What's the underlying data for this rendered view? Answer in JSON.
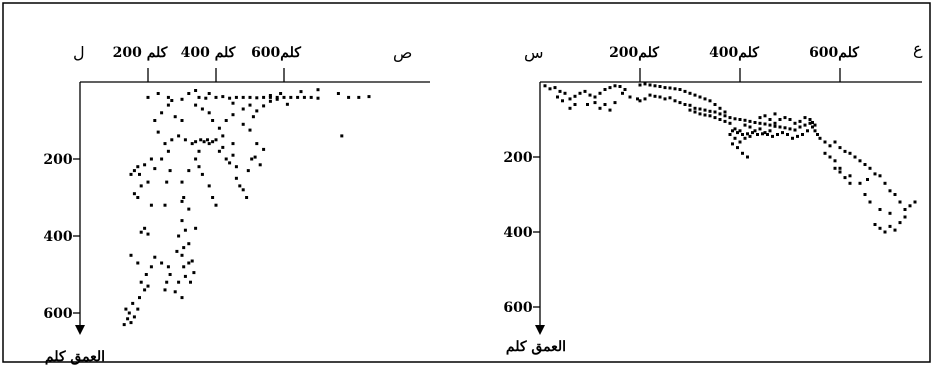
{
  "chart_data": [
    {
      "type": "scatter",
      "panel": "left",
      "corner_label": "ل",
      "x_end_label": "ص",
      "ylabel": "العمق كلم",
      "x_ticks": [
        {
          "value": 200,
          "label": "200 كلم"
        },
        {
          "value": 400,
          "label": "400 كلم"
        },
        {
          "value": 600,
          "label": "600كلم"
        }
      ],
      "y_ticks": [
        {
          "value": 200,
          "label": "200"
        },
        {
          "value": 400,
          "label": "400"
        },
        {
          "value": 600,
          "label": "600"
        }
      ],
      "xlim": [
        0,
        850
      ],
      "ylim": [
        0,
        640
      ],
      "grid": false,
      "points": [
        [
          130,
          630
        ],
        [
          140,
          615
        ],
        [
          150,
          625
        ],
        [
          135,
          590
        ],
        [
          145,
          600
        ],
        [
          160,
          610
        ],
        [
          170,
          590
        ],
        [
          155,
          575
        ],
        [
          175,
          560
        ],
        [
          190,
          540
        ],
        [
          180,
          520
        ],
        [
          200,
          530
        ],
        [
          195,
          500
        ],
        [
          210,
          480
        ],
        [
          170,
          470
        ],
        [
          150,
          450
        ],
        [
          220,
          455
        ],
        [
          240,
          470
        ],
        [
          260,
          480
        ],
        [
          265,
          500
        ],
        [
          255,
          520
        ],
        [
          250,
          540
        ],
        [
          280,
          545
        ],
        [
          300,
          560
        ],
        [
          290,
          520
        ],
        [
          310,
          505
        ],
        [
          305,
          480
        ],
        [
          320,
          470
        ],
        [
          300,
          450
        ],
        [
          285,
          440
        ],
        [
          330,
          465
        ],
        [
          335,
          495
        ],
        [
          325,
          520
        ],
        [
          305,
          430
        ],
        [
          320,
          420
        ],
        [
          290,
          400
        ],
        [
          310,
          385
        ],
        [
          300,
          360
        ],
        [
          340,
          380
        ],
        [
          320,
          330
        ],
        [
          300,
          310
        ],
        [
          180,
          390
        ],
        [
          190,
          380
        ],
        [
          200,
          395
        ],
        [
          210,
          320
        ],
        [
          170,
          300
        ],
        [
          160,
          290
        ],
        [
          180,
          270
        ],
        [
          200,
          260
        ],
        [
          175,
          240
        ],
        [
          150,
          240
        ],
        [
          160,
          230
        ],
        [
          170,
          220
        ],
        [
          190,
          215
        ],
        [
          210,
          200
        ],
        [
          220,
          225
        ],
        [
          240,
          200
        ],
        [
          260,
          180
        ],
        [
          265,
          230
        ],
        [
          255,
          260
        ],
        [
          250,
          320
        ],
        [
          305,
          300
        ],
        [
          300,
          260
        ],
        [
          320,
          230
        ],
        [
          350,
          220
        ],
        [
          360,
          240
        ],
        [
          380,
          270
        ],
        [
          390,
          300
        ],
        [
          400,
          320
        ],
        [
          340,
          200
        ],
        [
          350,
          180
        ],
        [
          380,
          160
        ],
        [
          400,
          150
        ],
        [
          420,
          140
        ],
        [
          410,
          180
        ],
        [
          430,
          200
        ],
        [
          440,
          210
        ],
        [
          460,
          220
        ],
        [
          450,
          190
        ],
        [
          420,
          170
        ],
        [
          410,
          120
        ],
        [
          390,
          100
        ],
        [
          380,
          80
        ],
        [
          360,
          70
        ],
        [
          340,
          60
        ],
        [
          350,
          40
        ],
        [
          370,
          42
        ],
        [
          400,
          40
        ],
        [
          420,
          38
        ],
        [
          440,
          42
        ],
        [
          460,
          40
        ],
        [
          480,
          40
        ],
        [
          500,
          40
        ],
        [
          520,
          41
        ],
        [
          540,
          40
        ],
        [
          560,
          40
        ],
        [
          580,
          40
        ],
        [
          600,
          40
        ],
        [
          620,
          40
        ],
        [
          640,
          40
        ],
        [
          660,
          40
        ],
        [
          680,
          40
        ],
        [
          700,
          42
        ],
        [
          450,
          55
        ],
        [
          480,
          70
        ],
        [
          500,
          60
        ],
        [
          520,
          75
        ],
        [
          540,
          62
        ],
        [
          560,
          50
        ],
        [
          580,
          45
        ],
        [
          610,
          58
        ],
        [
          300,
          100
        ],
        [
          280,
          90
        ],
        [
          260,
          60
        ],
        [
          240,
          80
        ],
        [
          220,
          100
        ],
        [
          230,
          130
        ],
        [
          250,
          160
        ],
        [
          270,
          150
        ],
        [
          290,
          140
        ],
        [
          310,
          150
        ],
        [
          330,
          160
        ],
        [
          340,
          155
        ],
        [
          355,
          150
        ],
        [
          365,
          155
        ],
        [
          375,
          150
        ],
        [
          390,
          155
        ],
        [
          260,
          40
        ],
        [
          270,
          48
        ],
        [
          560,
          35
        ],
        [
          590,
          30
        ],
        [
          650,
          25
        ],
        [
          700,
          20
        ],
        [
          760,
          30
        ],
        [
          790,
          40
        ],
        [
          820,
          40
        ],
        [
          850,
          38
        ],
        [
          770,
          140
        ],
        [
          480,
          110
        ],
        [
          500,
          125
        ],
        [
          510,
          90
        ],
        [
          450,
          85
        ],
        [
          430,
          100
        ],
        [
          200,
          40
        ],
        [
          230,
          30
        ],
        [
          300,
          45
        ],
        [
          320,
          30
        ],
        [
          340,
          22
        ],
        [
          380,
          30
        ],
        [
          520,
          160
        ],
        [
          540,
          175
        ],
        [
          460,
          250
        ],
        [
          470,
          270
        ],
        [
          480,
          280
        ],
        [
          490,
          300
        ],
        [
          450,
          160
        ],
        [
          505,
          200
        ],
        [
          495,
          230
        ],
        [
          515,
          195
        ],
        [
          530,
          215
        ]
      ]
    },
    {
      "type": "scatter",
      "panel": "right",
      "corner_label": "س",
      "x_end_label": "ع",
      "ylabel": "العمق كلم",
      "x_ticks": [
        {
          "value": 200,
          "label": "200كلم"
        },
        {
          "value": 400,
          "label": "400كلم"
        },
        {
          "value": 600,
          "label": "600كلم"
        }
      ],
      "y_ticks": [
        {
          "value": 200,
          "label": "200"
        },
        {
          "value": 400,
          "label": "400"
        },
        {
          "value": 600,
          "label": "600"
        }
      ],
      "xlim": [
        0,
        750
      ],
      "ylim": [
        0,
        650
      ],
      "grid": false,
      "points": [
        [
          10,
          10
        ],
        [
          20,
          18
        ],
        [
          30,
          15
        ],
        [
          40,
          25
        ],
        [
          50,
          30
        ],
        [
          35,
          40
        ],
        [
          45,
          50
        ],
        [
          60,
          45
        ],
        [
          70,
          38
        ],
        [
          80,
          30
        ],
        [
          90,
          25
        ],
        [
          100,
          35
        ],
        [
          110,
          40
        ],
        [
          120,
          30
        ],
        [
          130,
          20
        ],
        [
          140,
          15
        ],
        [
          150,
          10
        ],
        [
          160,
          12
        ],
        [
          170,
          20
        ],
        [
          95,
          60
        ],
        [
          110,
          55
        ],
        [
          130,
          60
        ],
        [
          150,
          55
        ],
        [
          70,
          60
        ],
        [
          60,
          70
        ],
        [
          120,
          70
        ],
        [
          140,
          75
        ],
        [
          165,
          30
        ],
        [
          180,
          40
        ],
        [
          195,
          45
        ],
        [
          200,
          50
        ],
        [
          210,
          45
        ],
        [
          220,
          35
        ],
        [
          230,
          38
        ],
        [
          240,
          40
        ],
        [
          250,
          45
        ],
        [
          260,
          42
        ],
        [
          270,
          50
        ],
        [
          280,
          55
        ],
        [
          290,
          60
        ],
        [
          300,
          62
        ],
        [
          310,
          70
        ],
        [
          320,
          72
        ],
        [
          330,
          75
        ],
        [
          340,
          78
        ],
        [
          350,
          80
        ],
        [
          360,
          85
        ],
        [
          370,
          90
        ],
        [
          380,
          95
        ],
        [
          390,
          98
        ],
        [
          400,
          100
        ],
        [
          410,
          102
        ],
        [
          420,
          105
        ],
        [
          430,
          108
        ],
        [
          440,
          110
        ],
        [
          450,
          112
        ],
        [
          460,
          115
        ],
        [
          470,
          118
        ],
        [
          480,
          120
        ],
        [
          490,
          122
        ],
        [
          500,
          125
        ],
        [
          510,
          128
        ],
        [
          520,
          120
        ],
        [
          530,
          115
        ],
        [
          540,
          110
        ],
        [
          420,
          120
        ],
        [
          430,
          130
        ],
        [
          440,
          125
        ],
        [
          450,
          135
        ],
        [
          460,
          130
        ],
        [
          470,
          110
        ],
        [
          480,
          100
        ],
        [
          490,
          95
        ],
        [
          500,
          100
        ],
        [
          510,
          110
        ],
        [
          520,
          105
        ],
        [
          530,
          95
        ],
        [
          540,
          100
        ],
        [
          545,
          108
        ],
        [
          550,
          115
        ],
        [
          440,
          95
        ],
        [
          450,
          90
        ],
        [
          460,
          100
        ],
        [
          470,
          85
        ],
        [
          410,
          115
        ],
        [
          400,
          130
        ],
        [
          390,
          125
        ],
        [
          380,
          110
        ],
        [
          370,
          105
        ],
        [
          360,
          100
        ],
        [
          350,
          95
        ],
        [
          340,
          90
        ],
        [
          330,
          88
        ],
        [
          320,
          85
        ],
        [
          310,
          80
        ],
        [
          300,
          75
        ],
        [
          380,
          140
        ],
        [
          390,
          150
        ],
        [
          400,
          160
        ],
        [
          410,
          150
        ],
        [
          420,
          145
        ],
        [
          385,
          165
        ],
        [
          395,
          175
        ],
        [
          405,
          190
        ],
        [
          415,
          200
        ],
        [
          370,
          80
        ],
        [
          360,
          70
        ],
        [
          350,
          60
        ],
        [
          340,
          50
        ],
        [
          330,
          45
        ],
        [
          320,
          40
        ],
        [
          310,
          35
        ],
        [
          300,
          30
        ],
        [
          290,
          25
        ],
        [
          280,
          20
        ],
        [
          270,
          18
        ],
        [
          260,
          16
        ],
        [
          250,
          15
        ],
        [
          240,
          12
        ],
        [
          230,
          10
        ],
        [
          220,
          8
        ],
        [
          210,
          5
        ],
        [
          200,
          8
        ],
        [
          560,
          150
        ],
        [
          570,
          160
        ],
        [
          580,
          170
        ],
        [
          590,
          160
        ],
        [
          600,
          175
        ],
        [
          610,
          185
        ],
        [
          620,
          190
        ],
        [
          630,
          200
        ],
        [
          640,
          210
        ],
        [
          650,
          220
        ],
        [
          660,
          230
        ],
        [
          670,
          245
        ],
        [
          655,
          260
        ],
        [
          640,
          270
        ],
        [
          620,
          250
        ],
        [
          600,
          230
        ],
        [
          590,
          210
        ],
        [
          680,
          250
        ],
        [
          690,
          270
        ],
        [
          700,
          290
        ],
        [
          710,
          300
        ],
        [
          720,
          320
        ],
        [
          730,
          340
        ],
        [
          740,
          330
        ],
        [
          750,
          320
        ],
        [
          730,
          360
        ],
        [
          720,
          375
        ],
        [
          700,
          385
        ],
        [
          690,
          400
        ],
        [
          710,
          395
        ],
        [
          680,
          390
        ],
        [
          670,
          380
        ],
        [
          680,
          340
        ],
        [
          700,
          350
        ],
        [
          660,
          320
        ],
        [
          650,
          300
        ],
        [
          620,
          270
        ],
        [
          610,
          255
        ],
        [
          600,
          240
        ],
        [
          590,
          230
        ],
        [
          580,
          200
        ],
        [
          570,
          190
        ],
        [
          550,
          130
        ],
        [
          555,
          140
        ],
        [
          545,
          120
        ],
        [
          535,
          130
        ],
        [
          525,
          140
        ],
        [
          515,
          145
        ],
        [
          505,
          150
        ],
        [
          495,
          140
        ],
        [
          485,
          135
        ],
        [
          475,
          140
        ],
        [
          465,
          145
        ],
        [
          455,
          140
        ],
        [
          445,
          138
        ],
        [
          435,
          140
        ],
        [
          425,
          135
        ],
        [
          415,
          138
        ],
        [
          405,
          140
        ],
        [
          395,
          135
        ],
        [
          385,
          130
        ]
      ]
    }
  ]
}
